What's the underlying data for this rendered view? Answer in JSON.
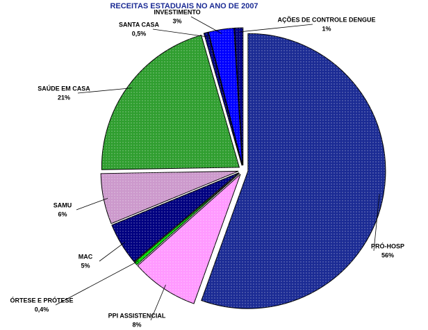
{
  "chart_data": {
    "type": "pie",
    "title": "RECEITAS ESTADUAIS NO ANO DE 2007",
    "categories": [
      "PRÓ-HOSP",
      "PPI ASSISTENCIAL",
      "ÓRTESE E PRÓTESE",
      "MAC",
      "SAMU",
      "SAÚDE EM CASA",
      "SANTA CASA",
      "INVESTIMENTO",
      "AÇÕES DE CONTROLE DENGUE"
    ],
    "values": [
      56,
      8,
      0.4,
      5,
      6,
      21,
      0.5,
      3,
      1
    ],
    "value_labels": [
      "56%",
      "8%",
      "0,4%",
      "5%",
      "6%",
      "21%",
      "0,5%",
      "3%",
      "1%"
    ],
    "colors": [
      "#1b2b94",
      "#ff99ff",
      "#00dd00",
      "#000080",
      "#cc99cc",
      "#2f9e2f",
      "#000080",
      "#0000ff",
      "#000080"
    ]
  }
}
